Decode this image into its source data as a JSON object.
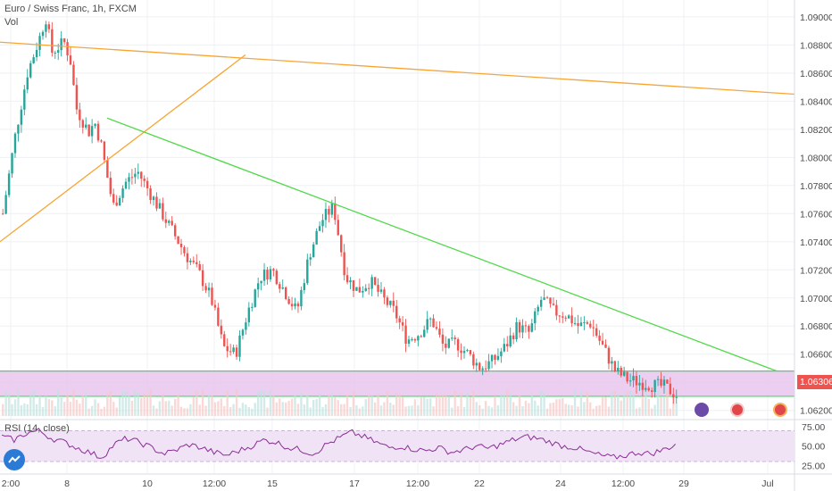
{
  "header": {
    "symbol_line": "Euro / Swiss Franc, 1h, FXCM",
    "volume_label": "Vol"
  },
  "rsi_pane": {
    "label": "RSI (14, close)"
  },
  "last_price": "1.06306",
  "colors": {
    "up": "#26a69a",
    "down": "#ef5350",
    "trend_orange": "#f7a535",
    "trend_green": "#52d94b",
    "zone_fill": "#e9c6ef",
    "zone_border": "#4fd36c",
    "rsi_line": "#8a2d96",
    "rsi_band": "#f1e3f6"
  },
  "chart_data": [
    {
      "type": "candlestick",
      "title": "Euro / Swiss Franc, 1h, FXCM",
      "x_ticks": [
        "2:00",
        "8",
        "10",
        "12:00",
        "15",
        "17",
        "12:00",
        "22",
        "24",
        "12:00",
        "29",
        "Jul"
      ],
      "y_ticks": [
        "1.09000",
        "1.08800",
        "1.08600",
        "1.08400",
        "1.08200",
        "1.08000",
        "1.07800",
        "1.07600",
        "1.07400",
        "1.07200",
        "1.07000",
        "1.06800",
        "1.06600",
        "1.06400",
        "1.06200"
      ],
      "ylim": [
        1.0616,
        1.0912
      ],
      "price_path": [
        [
          0,
          1.076
        ],
        [
          2,
          1.0815
        ],
        [
          4,
          1.086
        ],
        [
          6,
          1.0885
        ],
        [
          7,
          1.09
        ],
        [
          8,
          1.0875
        ],
        [
          10,
          1.0882
        ],
        [
          11,
          1.087
        ],
        [
          12,
          1.0835
        ],
        [
          14,
          1.0818
        ],
        [
          15,
          1.0825
        ],
        [
          16,
          1.081
        ],
        [
          18,
          1.0765
        ],
        [
          20,
          1.0782
        ],
        [
          22,
          1.079
        ],
        [
          24,
          1.0775
        ],
        [
          26,
          1.076
        ],
        [
          28,
          1.0745
        ],
        [
          30,
          1.073
        ],
        [
          32,
          1.0718
        ],
        [
          34,
          1.07
        ],
        [
          36,
          1.0665
        ],
        [
          38,
          1.066
        ],
        [
          40,
          1.069
        ],
        [
          42,
          1.0715
        ],
        [
          44,
          1.072
        ],
        [
          46,
          1.0705
        ],
        [
          48,
          1.069
        ],
        [
          50,
          1.073
        ],
        [
          52,
          1.0755
        ],
        [
          54,
          1.0765
        ],
        [
          55,
          1.074
        ],
        [
          56,
          1.0715
        ],
        [
          58,
          1.0705
        ],
        [
          60,
          1.0712
        ],
        [
          62,
          1.07
        ],
        [
          64,
          1.069
        ],
        [
          66,
          1.067
        ],
        [
          68,
          1.0675
        ],
        [
          70,
          1.0685
        ],
        [
          72,
          1.0665
        ],
        [
          74,
          1.0668
        ],
        [
          76,
          1.066
        ],
        [
          78,
          1.065
        ],
        [
          80,
          1.0655
        ],
        [
          82,
          1.0665
        ],
        [
          84,
          1.068
        ],
        [
          86,
          1.0675
        ],
        [
          88,
          1.07
        ],
        [
          90,
          1.069
        ],
        [
          92,
          1.0688
        ],
        [
          94,
          1.068
        ],
        [
          96,
          1.0682
        ],
        [
          98,
          1.0665
        ],
        [
          100,
          1.0648
        ],
        [
          102,
          1.0642
        ],
        [
          104,
          1.064
        ],
        [
          106,
          1.0638
        ],
        [
          108,
          1.0637
        ],
        [
          110,
          1.0631
        ]
      ],
      "trendlines": [
        {
          "color": "orange",
          "from": [
            0,
            1.0882
          ],
          "to": [
            110,
            1.0845
          ]
        },
        {
          "color": "orange",
          "from": [
            0,
            1.074
          ],
          "to": [
            34,
            1.0873
          ]
        },
        {
          "color": "green",
          "from": [
            15,
            1.0828
          ],
          "to": [
            110,
            1.0648
          ]
        }
      ],
      "zone": {
        "top": 1.0648,
        "bottom": 1.063
      }
    },
    {
      "type": "line",
      "title": "RSI (14, close)",
      "y_ticks": [
        "75.00",
        "50.00",
        "25.00"
      ],
      "ylim": [
        15,
        82
      ],
      "band": [
        30,
        70
      ],
      "values": [
        62,
        58,
        67,
        70,
        60,
        55,
        48,
        42,
        35,
        52,
        60,
        55,
        48,
        40,
        45,
        52,
        48,
        42,
        38,
        44,
        50,
        58,
        55,
        48,
        45,
        40,
        52,
        60,
        68,
        62,
        55,
        48,
        50,
        46,
        44,
        48,
        42,
        45,
        50,
        47,
        52,
        58,
        62,
        60,
        55,
        50,
        48,
        42,
        38,
        35,
        38,
        42,
        40,
        45,
        52
      ]
    }
  ]
}
